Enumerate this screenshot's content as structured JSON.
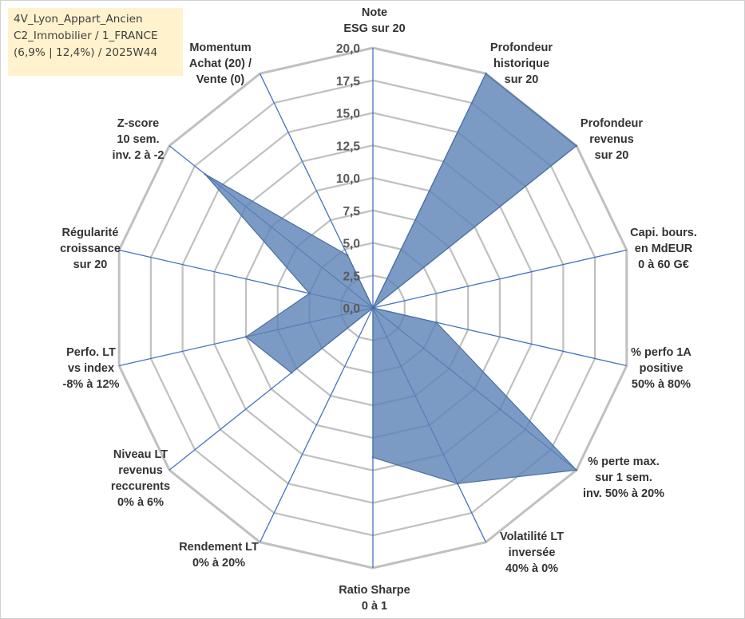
{
  "title_lines": [
    "4V_Lyon_Appart_Ancien",
    "C2_Immobilier / 1_FRANCE",
    "(6,9% | 12,4%) / 2025W44"
  ],
  "colors": {
    "grid": "#c0c0c0",
    "spoke": "#4472c4",
    "fill": "#5b82b5",
    "stroke": "#4a6fa5",
    "title_bg": "#fff2cc"
  },
  "chart_data": {
    "type": "radar",
    "title": "",
    "rmin": 0,
    "rmax": 20,
    "tick_step": 2.5,
    "tick_labels": [
      "0,0",
      "2,5",
      "5,0",
      "7,5",
      "10,0",
      "12,5",
      "15,0",
      "17,5",
      "20,0"
    ],
    "axes": [
      {
        "lines": [
          "Note",
          "ESG sur 20"
        ],
        "value": 0
      },
      {
        "lines": [
          "Profondeur",
          "historique",
          "sur 20"
        ],
        "value": 20
      },
      {
        "lines": [
          "Profondeur",
          "revenus",
          "sur 20"
        ],
        "value": 20
      },
      {
        "lines": [
          "Capi. bours.",
          "en MdEUR",
          "0 à 60 G€"
        ],
        "value": 0
      },
      {
        "lines": [
          "% perfo 1A",
          "positive",
          "50% à 80%"
        ],
        "value": 5
      },
      {
        "lines": [
          "% perte max.",
          "sur 1 sem.",
          "inv. 50% à 20%"
        ],
        "value": 20
      },
      {
        "lines": [
          "Volatilité LT",
          "inversée",
          "40% à 0%"
        ],
        "value": 15
      },
      {
        "lines": [
          "Ratio Sharpe",
          "0 à 1"
        ],
        "value": 11.5
      },
      {
        "lines": [
          "Rendement LT",
          "0% à 20%"
        ],
        "value": 0
      },
      {
        "lines": [
          "Niveau LT",
          "revenus",
          "reccurents",
          "0% à 6%"
        ],
        "value": 8
      },
      {
        "lines": [
          "Perfo. LT",
          "vs index",
          "-8% à 12%"
        ],
        "value": 10
      },
      {
        "lines": [
          "Régularité",
          "croissance",
          "sur 20"
        ],
        "value": 5
      },
      {
        "lines": [
          "Z-score",
          "10 sem.",
          "inv. 2 à -2"
        ],
        "value": 16.5
      },
      {
        "lines": [
          "Momentum",
          "Achat (20) /",
          "Vente (0)"
        ],
        "value": 4.5
      }
    ]
  }
}
